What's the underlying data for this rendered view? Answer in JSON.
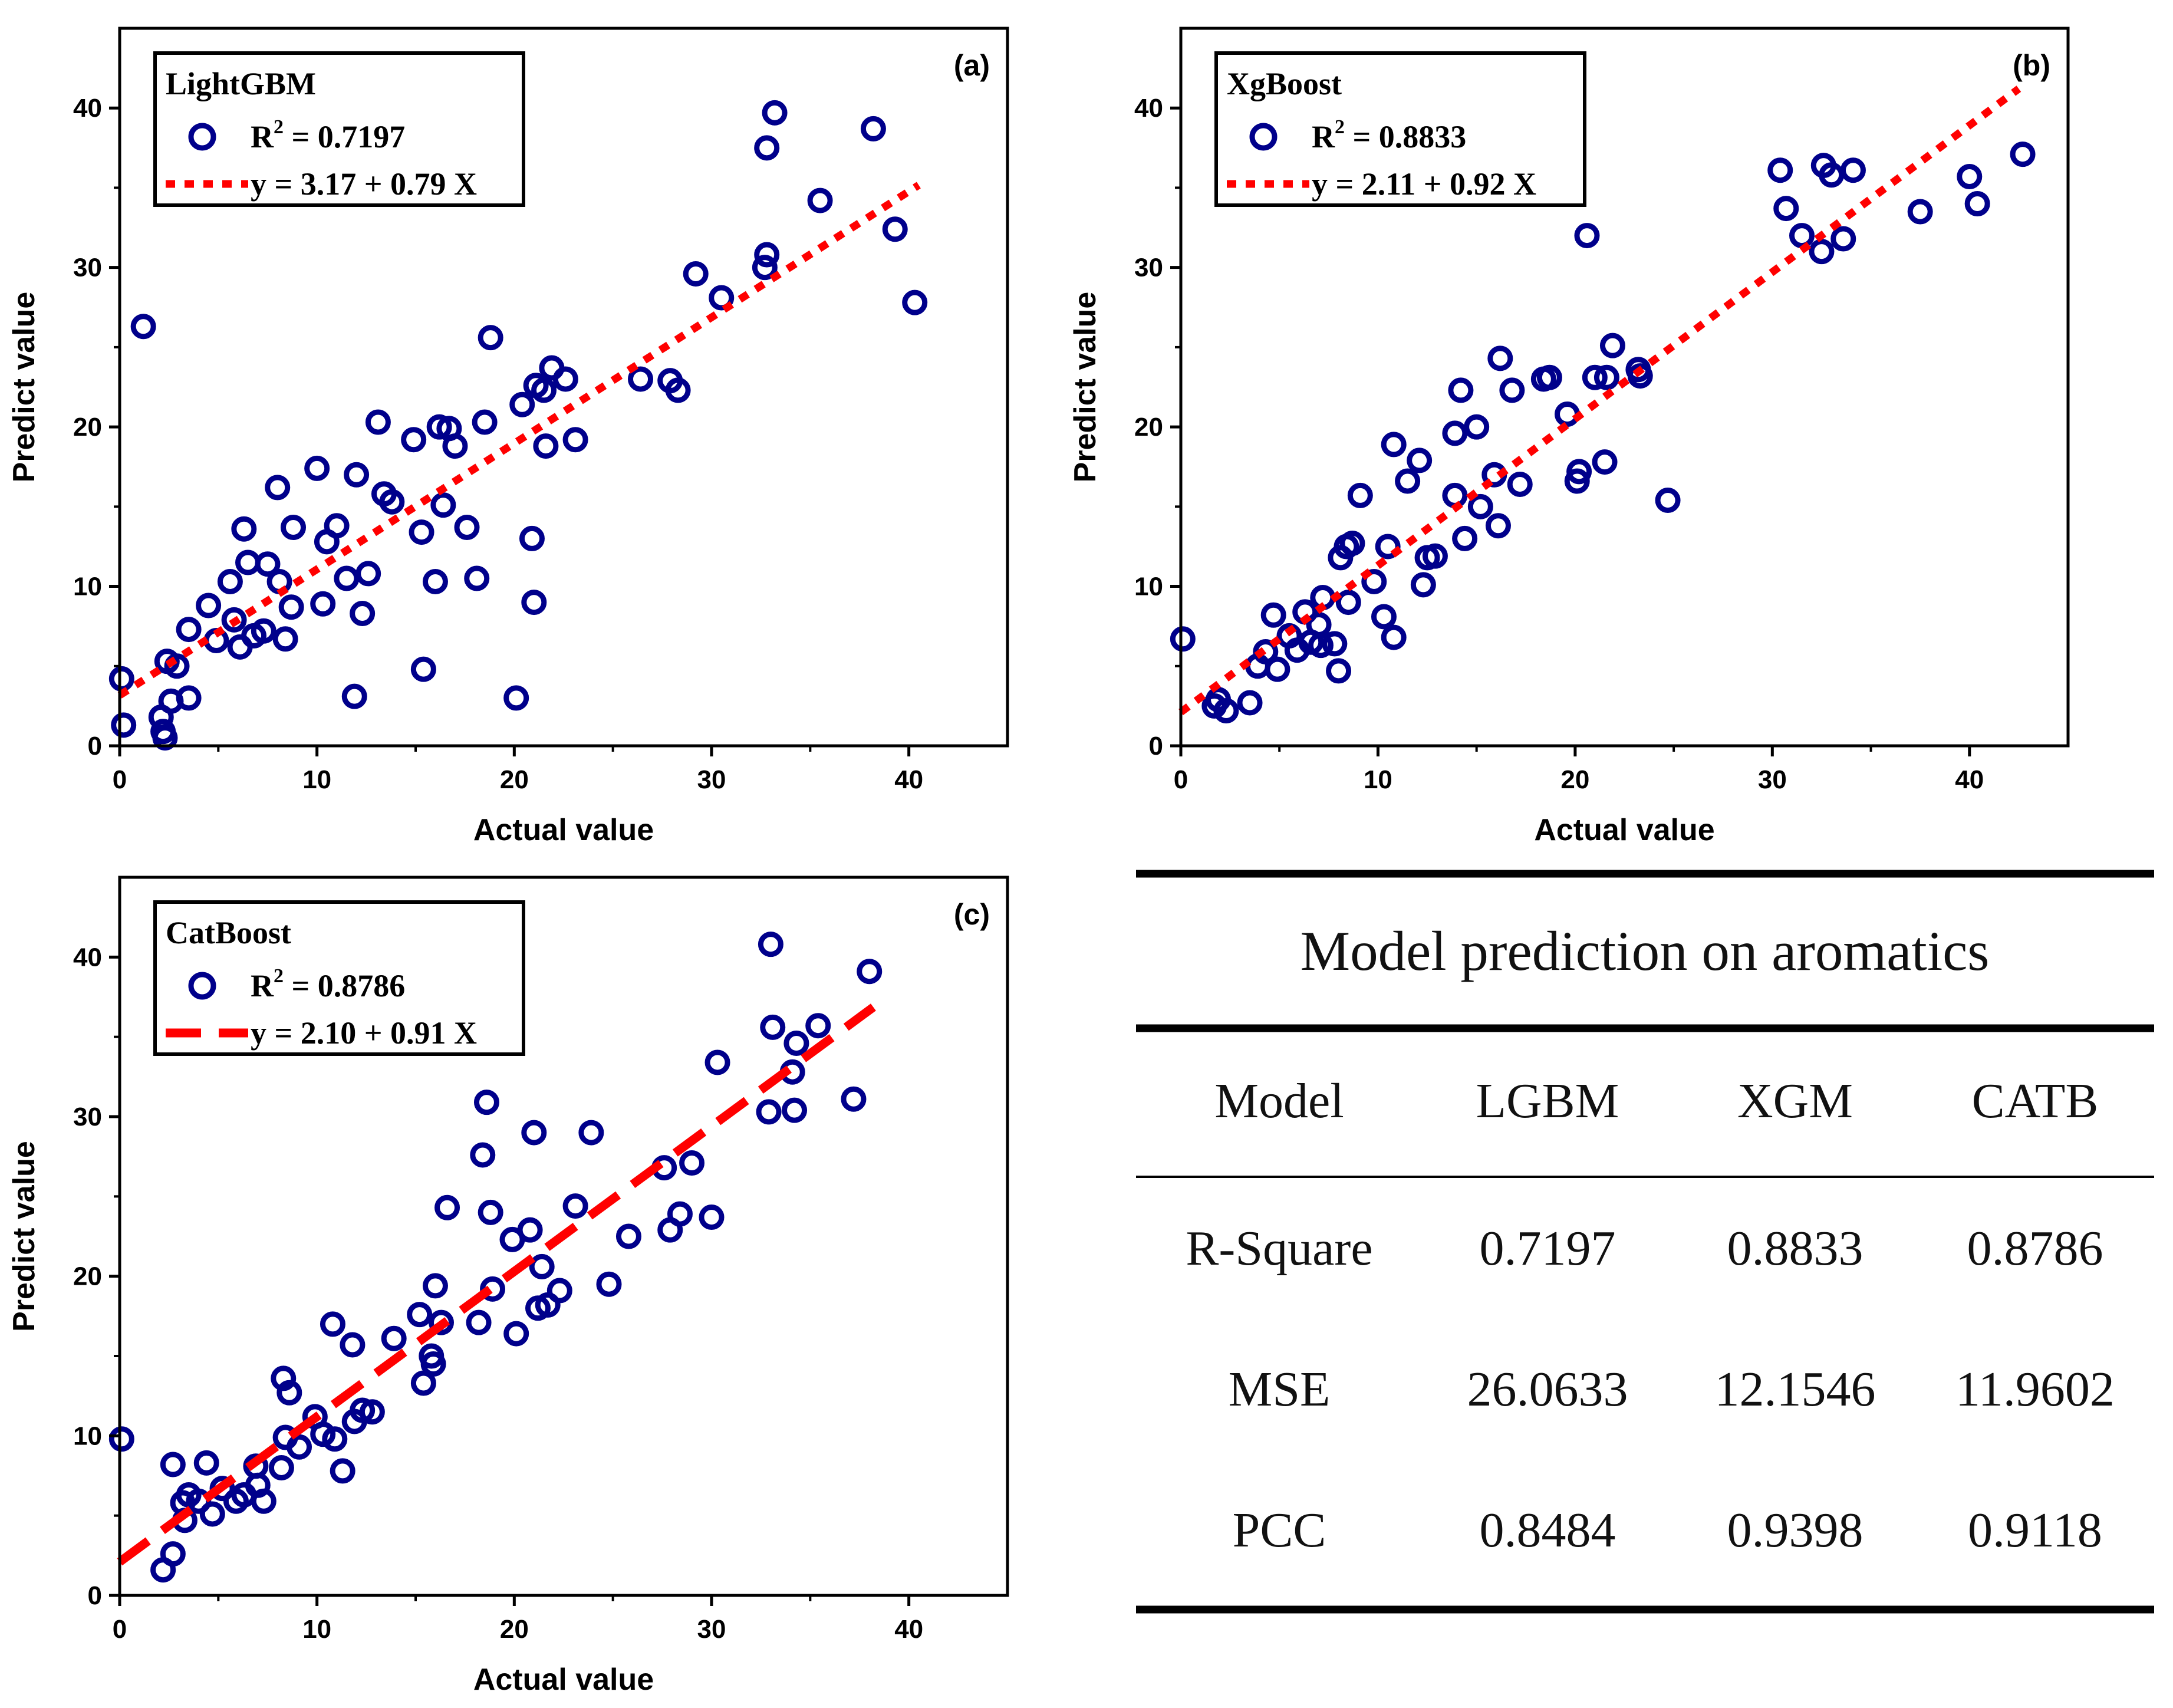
{
  "figure": {
    "background": "#ffffff"
  },
  "colors": {
    "marker": "#00008b",
    "fit": "#ff0000",
    "axis": "#000000"
  },
  "chart_data": [
    {
      "id": "a",
      "type": "scatter",
      "panel_label": "(a)",
      "title": "",
      "xlabel": "Actual value",
      "ylabel": "Predict value",
      "xlim": [
        0,
        45
      ],
      "ylim": [
        0,
        45
      ],
      "xticks": [
        0,
        10,
        20,
        30,
        40
      ],
      "yticks": [
        0,
        10,
        20,
        30,
        40
      ],
      "xtick_labels": [
        "0",
        "10",
        "20",
        "30",
        "40"
      ],
      "ytick_labels": [
        "0",
        "10",
        "20",
        "30",
        "40"
      ],
      "legend": {
        "position": "top-left",
        "title": "LightGBM",
        "r2_prefix": "R",
        "r2_sup": "2",
        "r2_value": " = 0.7197",
        "fit_label": "y = 3.17 + 0.79 X"
      },
      "fit": {
        "intercept": 3.17,
        "slope": 0.79,
        "x_range": [
          0,
          40.5
        ],
        "style": "dotted"
      },
      "points": [
        [
          0.1,
          4.2
        ],
        [
          0.2,
          1.3
        ],
        [
          1.2,
          26.3
        ],
        [
          2.1,
          1.8
        ],
        [
          2.2,
          0.9
        ],
        [
          2.3,
          0.5
        ],
        [
          2.4,
          5.3
        ],
        [
          2.6,
          2.8
        ],
        [
          2.9,
          5.0
        ],
        [
          3.5,
          7.3
        ],
        [
          3.5,
          3.0
        ],
        [
          4.5,
          8.8
        ],
        [
          4.9,
          6.6
        ],
        [
          5.6,
          10.3
        ],
        [
          5.8,
          7.9
        ],
        [
          6.1,
          6.2
        ],
        [
          6.3,
          13.6
        ],
        [
          6.5,
          11.5
        ],
        [
          6.8,
          6.9
        ],
        [
          7.3,
          7.2
        ],
        [
          7.5,
          11.4
        ],
        [
          8.0,
          16.2
        ],
        [
          8.1,
          10.3
        ],
        [
          8.4,
          6.7
        ],
        [
          8.7,
          8.7
        ],
        [
          8.8,
          13.7
        ],
        [
          10.0,
          17.4
        ],
        [
          10.3,
          8.9
        ],
        [
          10.5,
          12.8
        ],
        [
          11.0,
          13.8
        ],
        [
          11.5,
          10.5
        ],
        [
          12.0,
          17.0
        ],
        [
          12.3,
          8.3
        ],
        [
          11.9,
          3.1
        ],
        [
          12.6,
          10.8
        ],
        [
          13.1,
          20.3
        ],
        [
          13.4,
          15.8
        ],
        [
          13.8,
          15.3
        ],
        [
          14.9,
          19.2
        ],
        [
          15.3,
          13.4
        ],
        [
          15.4,
          4.8
        ],
        [
          16.0,
          10.3
        ],
        [
          16.2,
          20.0
        ],
        [
          16.4,
          15.1
        ],
        [
          16.7,
          19.9
        ],
        [
          17.0,
          18.8
        ],
        [
          17.6,
          13.7
        ],
        [
          18.1,
          10.5
        ],
        [
          18.5,
          20.3
        ],
        [
          18.8,
          25.6
        ],
        [
          20.1,
          3.0
        ],
        [
          20.4,
          21.4
        ],
        [
          20.9,
          13.0
        ],
        [
          21.0,
          9.0
        ],
        [
          21.1,
          22.6
        ],
        [
          21.5,
          22.3
        ],
        [
          21.6,
          18.8
        ],
        [
          21.9,
          23.7
        ],
        [
          22.6,
          23.0
        ],
        [
          23.1,
          19.2
        ],
        [
          26.4,
          23.0
        ],
        [
          27.9,
          22.9
        ],
        [
          28.3,
          22.3
        ],
        [
          29.2,
          29.6
        ],
        [
          30.5,
          28.1
        ],
        [
          32.7,
          30.0
        ],
        [
          32.8,
          37.5
        ],
        [
          32.8,
          30.8
        ],
        [
          33.2,
          39.7
        ],
        [
          35.5,
          34.2
        ],
        [
          38.2,
          38.7
        ],
        [
          39.3,
          32.4
        ],
        [
          40.3,
          27.8
        ]
      ]
    },
    {
      "id": "b",
      "type": "scatter",
      "panel_label": "(b)",
      "title": "",
      "xlabel": "Actual value",
      "ylabel": "Predict value",
      "xlim": [
        0,
        45
      ],
      "ylim": [
        0,
        45
      ],
      "xticks": [
        0,
        10,
        20,
        30,
        40
      ],
      "yticks": [
        0,
        10,
        20,
        30,
        40
      ],
      "xtick_labels": [
        "0",
        "10",
        "20",
        "30",
        "40"
      ],
      "ytick_labels": [
        "0",
        "10",
        "20",
        "30",
        "40"
      ],
      "legend": {
        "position": "top-left",
        "title": "XgBoost",
        "r2_prefix": "R",
        "r2_sup": "2",
        "r2_value": " = 0.8833",
        "fit_label": "y = 2.11 + 0.92 X"
      },
      "fit": {
        "intercept": 2.11,
        "slope": 0.92,
        "x_range": [
          0,
          42.5
        ],
        "style": "dotted"
      },
      "points": [
        [
          0.1,
          6.7
        ],
        [
          1.7,
          2.5
        ],
        [
          1.9,
          2.9
        ],
        [
          2.3,
          2.2
        ],
        [
          3.5,
          2.7
        ],
        [
          3.9,
          5.0
        ],
        [
          4.3,
          5.9
        ],
        [
          4.7,
          8.2
        ],
        [
          4.9,
          4.8
        ],
        [
          5.5,
          6.9
        ],
        [
          5.9,
          6.0
        ],
        [
          6.3,
          8.4
        ],
        [
          6.6,
          6.5
        ],
        [
          7.0,
          7.6
        ],
        [
          7.1,
          6.3
        ],
        [
          7.2,
          9.3
        ],
        [
          7.8,
          6.4
        ],
        [
          8.0,
          4.7
        ],
        [
          8.1,
          11.8
        ],
        [
          8.4,
          12.5
        ],
        [
          8.5,
          9.0
        ],
        [
          8.7,
          12.7
        ],
        [
          9.1,
          15.7
        ],
        [
          9.8,
          10.3
        ],
        [
          10.3,
          8.1
        ],
        [
          10.5,
          12.5
        ],
        [
          10.8,
          6.8
        ],
        [
          10.8,
          18.9
        ],
        [
          11.5,
          16.6
        ],
        [
          12.1,
          17.9
        ],
        [
          12.3,
          10.1
        ],
        [
          12.5,
          11.8
        ],
        [
          12.9,
          11.9
        ],
        [
          13.9,
          15.7
        ],
        [
          13.9,
          19.6
        ],
        [
          14.2,
          22.3
        ],
        [
          14.4,
          13.0
        ],
        [
          15.0,
          20.0
        ],
        [
          15.2,
          15.0
        ],
        [
          15.9,
          17.0
        ],
        [
          16.1,
          13.8
        ],
        [
          16.2,
          24.3
        ],
        [
          16.8,
          22.3
        ],
        [
          17.2,
          16.4
        ],
        [
          18.4,
          23.0
        ],
        [
          18.7,
          23.1
        ],
        [
          19.6,
          20.8
        ],
        [
          20.1,
          16.6
        ],
        [
          20.2,
          17.2
        ],
        [
          20.6,
          32.0
        ],
        [
          21.0,
          23.1
        ],
        [
          21.5,
          17.8
        ],
        [
          21.6,
          23.1
        ],
        [
          21.9,
          25.1
        ],
        [
          23.2,
          23.6
        ],
        [
          23.3,
          23.2
        ],
        [
          24.7,
          15.4
        ],
        [
          30.4,
          36.1
        ],
        [
          30.7,
          33.7
        ],
        [
          31.5,
          32.0
        ],
        [
          32.5,
          31.0
        ],
        [
          32.6,
          36.4
        ],
        [
          33.0,
          35.8
        ],
        [
          33.6,
          31.8
        ],
        [
          34.1,
          36.1
        ],
        [
          37.5,
          33.5
        ],
        [
          40.0,
          35.7
        ],
        [
          40.4,
          34.0
        ],
        [
          42.7,
          37.1
        ]
      ]
    },
    {
      "id": "c",
      "type": "scatter",
      "panel_label": "(c)",
      "title": "",
      "xlabel": "Actual value",
      "ylabel": "Predict value",
      "xlim": [
        0,
        45
      ],
      "ylim": [
        0,
        45
      ],
      "xticks": [
        0,
        10,
        20,
        30,
        40
      ],
      "yticks": [
        0,
        10,
        20,
        30,
        40
      ],
      "xtick_labels": [
        "0",
        "10",
        "20",
        "30",
        "40"
      ],
      "ytick_labels": [
        "0",
        "10",
        "20",
        "30",
        "40"
      ],
      "legend": {
        "position": "top-left",
        "title": "CatBoost",
        "r2_prefix": "R",
        "r2_sup": "2",
        "r2_value": " = 0.8786",
        "fit_label": "y = 2.10 + 0.91 X"
      },
      "fit": {
        "intercept": 2.1,
        "slope": 0.91,
        "x_range": [
          0,
          38.2
        ],
        "style": "dashed"
      },
      "points": [
        [
          0.1,
          9.8
        ],
        [
          2.2,
          1.6
        ],
        [
          2.7,
          2.6
        ],
        [
          2.7,
          8.2
        ],
        [
          3.2,
          5.8
        ],
        [
          3.3,
          4.7
        ],
        [
          3.5,
          6.3
        ],
        [
          4.0,
          5.9
        ],
        [
          4.4,
          8.3
        ],
        [
          4.7,
          5.1
        ],
        [
          5.2,
          6.7
        ],
        [
          5.9,
          5.9
        ],
        [
          6.3,
          6.3
        ],
        [
          6.9,
          8.1
        ],
        [
          7.0,
          6.9
        ],
        [
          7.3,
          5.9
        ],
        [
          8.2,
          8.0
        ],
        [
          8.3,
          13.6
        ],
        [
          8.4,
          9.9
        ],
        [
          8.6,
          12.7
        ],
        [
          9.1,
          9.3
        ],
        [
          9.9,
          11.2
        ],
        [
          10.3,
          10.1
        ],
        [
          10.8,
          17.0
        ],
        [
          10.9,
          9.8
        ],
        [
          11.3,
          7.8
        ],
        [
          11.8,
          15.7
        ],
        [
          11.9,
          10.9
        ],
        [
          12.3,
          11.6
        ],
        [
          12.8,
          11.5
        ],
        [
          13.9,
          16.1
        ],
        [
          15.2,
          17.6
        ],
        [
          15.4,
          13.3
        ],
        [
          15.8,
          15.0
        ],
        [
          15.9,
          14.5
        ],
        [
          16.0,
          19.4
        ],
        [
          16.3,
          17.1
        ],
        [
          16.6,
          24.3
        ],
        [
          18.2,
          17.1
        ],
        [
          18.4,
          27.6
        ],
        [
          18.6,
          30.9
        ],
        [
          18.8,
          24.0
        ],
        [
          18.9,
          19.2
        ],
        [
          19.9,
          22.3
        ],
        [
          20.1,
          16.4
        ],
        [
          20.8,
          22.9
        ],
        [
          21.0,
          29.0
        ],
        [
          21.2,
          18.0
        ],
        [
          21.4,
          20.6
        ],
        [
          21.7,
          18.2
        ],
        [
          22.3,
          19.1
        ],
        [
          23.1,
          24.4
        ],
        [
          23.9,
          29.0
        ],
        [
          24.8,
          19.5
        ],
        [
          25.8,
          22.5
        ],
        [
          27.6,
          26.8
        ],
        [
          27.9,
          22.9
        ],
        [
          28.4,
          23.9
        ],
        [
          29.0,
          27.1
        ],
        [
          30.0,
          23.7
        ],
        [
          30.3,
          33.4
        ],
        [
          32.9,
          30.3
        ],
        [
          33.0,
          40.8
        ],
        [
          33.1,
          35.6
        ],
        [
          34.1,
          32.8
        ],
        [
          34.2,
          30.4
        ],
        [
          34.3,
          34.6
        ],
        [
          35.4,
          35.7
        ],
        [
          37.2,
          31.1
        ],
        [
          38.0,
          39.1
        ]
      ]
    }
  ],
  "table": {
    "title": "Model prediction on aromatics",
    "headers": [
      "Model",
      "LGBM",
      "XGM",
      "CATB"
    ],
    "rows": [
      [
        "R-Square",
        "0.7197",
        "0.8833",
        "0.8786"
      ],
      [
        "MSE",
        "26.0633",
        "12.1546",
        "11.9602"
      ],
      [
        "PCC",
        "0.8484",
        "0.9398",
        "0.9118"
      ]
    ]
  }
}
